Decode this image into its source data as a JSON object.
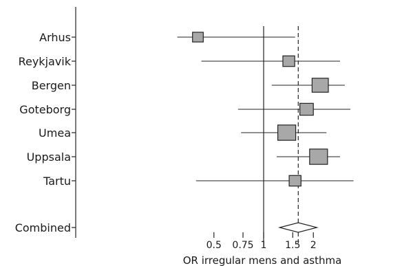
{
  "chart_data": {
    "type": "forest",
    "xlabel": "OR irregular mens and asthma",
    "x_scale": "log",
    "xlim": [
      0.28,
      3.3
    ],
    "ticks": [
      {
        "value": 0.5,
        "label": "0.5"
      },
      {
        "value": 0.75,
        "label": "0.75"
      },
      {
        "value": 1,
        "label": "1"
      },
      {
        "value": 1.5,
        "label": "1.5"
      },
      {
        "value": 2,
        "label": "2"
      }
    ],
    "null_line": 1,
    "pooled_line": 1.62,
    "studies": [
      {
        "label": "Arhus",
        "or": 0.4,
        "ci_low": 0.3,
        "ci_high": 1.55,
        "weight": 0.35
      },
      {
        "label": "Reykjavik",
        "or": 1.42,
        "ci_low": 0.42,
        "ci_high": 2.9,
        "weight": 0.45
      },
      {
        "label": "Bergen",
        "or": 2.2,
        "ci_low": 1.12,
        "ci_high": 3.1,
        "weight": 0.85
      },
      {
        "label": "Goteborg",
        "or": 1.82,
        "ci_low": 0.7,
        "ci_high": 3.35,
        "weight": 0.6
      },
      {
        "label": "Umea",
        "or": 1.38,
        "ci_low": 0.73,
        "ci_high": 2.4,
        "weight": 1.0
      },
      {
        "label": "Uppsala",
        "or": 2.15,
        "ci_low": 1.2,
        "ci_high": 2.9,
        "weight": 1.0
      },
      {
        "label": "Tartu",
        "or": 1.55,
        "ci_low": 0.39,
        "ci_high": 3.5,
        "weight": 0.45
      }
    ],
    "combined": {
      "label": "Combined",
      "or": 1.62,
      "ci_low": 1.25,
      "ci_high": 2.1
    }
  }
}
